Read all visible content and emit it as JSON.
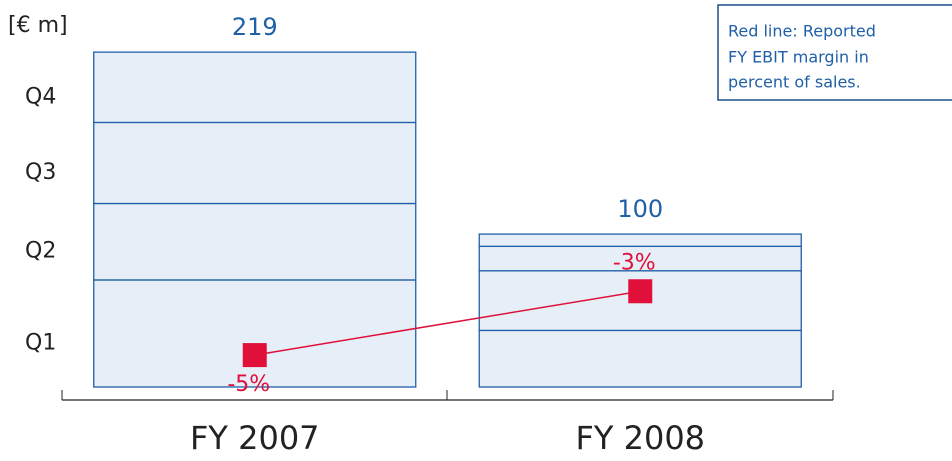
{
  "chart_data": {
    "type": "stacked-bar",
    "unit_label": "[€ m]",
    "note": [
      "Red line: Reported",
      "FY EBIT margin in",
      "percent of sales."
    ],
    "categories": [
      "FY 2007",
      "FY 2008"
    ],
    "totals": [
      219,
      100
    ],
    "series": [
      {
        "name": "Q1",
        "color": "#e6eef7",
        "values": [
          70,
          37
        ]
      },
      {
        "name": "Q2",
        "color": "#e6eef7",
        "values": [
          50,
          39
        ]
      },
      {
        "name": "Q3",
        "color": "#e6eef7",
        "values": [
          53,
          16
        ]
      },
      {
        "name": "Q4",
        "color": "#e6eef7",
        "values": [
          46,
          8
        ]
      }
    ],
    "line": {
      "name": "Reported FY EBIT margin",
      "color": "#e0103a",
      "axis": "y2",
      "values": [
        -5,
        -3
      ],
      "value_labels": [
        "-5%",
        "-3%"
      ]
    },
    "ylim": [
      0,
      240
    ],
    "y2lim": [
      -6,
      5.5
    ],
    "bar_outline": "#1f5fa8"
  }
}
